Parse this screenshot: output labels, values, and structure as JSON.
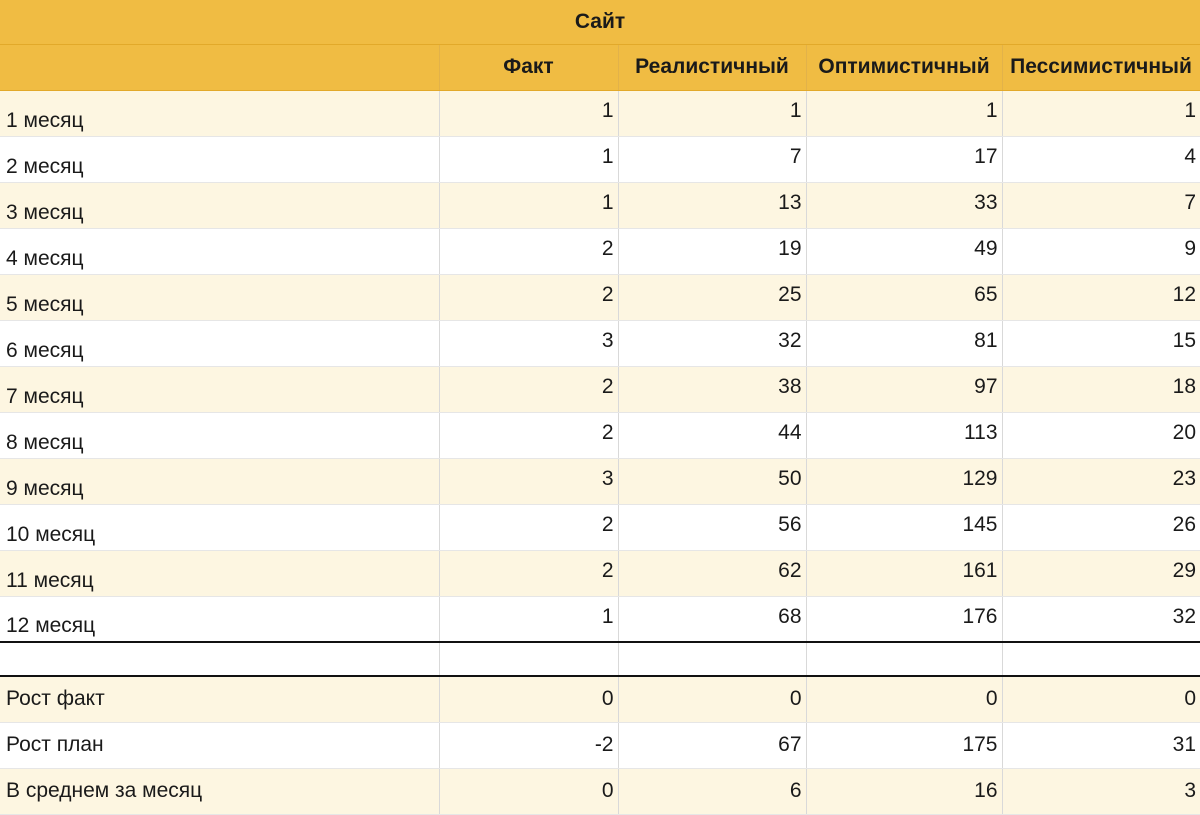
{
  "table": {
    "title": "Сайт",
    "columns": [
      "",
      "Факт",
      "Реалистичный",
      "Оптимистичный",
      "Пессимистичный"
    ],
    "rows": [
      {
        "label": "1 месяц",
        "values": [
          "1",
          "1",
          "1",
          "1"
        ]
      },
      {
        "label": "2 месяц",
        "values": [
          "1",
          "7",
          "17",
          "4"
        ]
      },
      {
        "label": "3 месяц",
        "values": [
          "1",
          "13",
          "33",
          "7"
        ]
      },
      {
        "label": "4 месяц",
        "values": [
          "2",
          "19",
          "49",
          "9"
        ]
      },
      {
        "label": "5 месяц",
        "values": [
          "2",
          "25",
          "65",
          "12"
        ]
      },
      {
        "label": "6 месяц",
        "values": [
          "3",
          "32",
          "81",
          "15"
        ]
      },
      {
        "label": "7 месяц",
        "values": [
          "2",
          "38",
          "97",
          "18"
        ]
      },
      {
        "label": "8 месяц",
        "values": [
          "2",
          "44",
          "113",
          "20"
        ]
      },
      {
        "label": "9 месяц",
        "values": [
          "3",
          "50",
          "129",
          "23"
        ]
      },
      {
        "label": "10 месяц",
        "values": [
          "2",
          "56",
          "145",
          "26"
        ]
      },
      {
        "label": "11 месяц",
        "values": [
          "2",
          "62",
          "161",
          "29"
        ]
      },
      {
        "label": "12 месяц",
        "values": [
          "1",
          "68",
          "176",
          "32"
        ]
      }
    ],
    "summary": [
      {
        "label": "Рост факт",
        "values": [
          "0",
          "0",
          "0",
          "0"
        ]
      },
      {
        "label": "Рост план",
        "values": [
          "-2",
          "67",
          "175",
          "31"
        ]
      },
      {
        "label": "В среднем за месяц",
        "values": [
          "0",
          "6",
          "16",
          "3"
        ]
      }
    ]
  },
  "colors": {
    "header_bg": "#f0bc43",
    "stripe_bg": "#fdf6e1",
    "grid_line": "#d9d9d9",
    "separator": "#111111"
  }
}
